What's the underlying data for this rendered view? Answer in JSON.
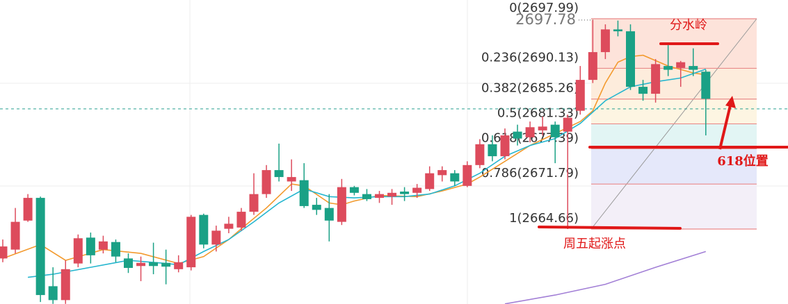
{
  "chart_data": {
    "type": "candlestick",
    "ylim": [
      2652.78,
      2700.96
    ],
    "up_color": "#dd4b5c",
    "down_color": "#1aa186",
    "open": [
      2660.0,
      2661.4,
      2666.0,
      2669.6,
      2655.6,
      2653.4,
      2659.2,
      2663.3,
      2661.4,
      2662.6,
      2660.0,
      2658.8,
      2659.4,
      2659.3,
      2658.3,
      2658.6,
      2666.9,
      2662.2,
      2664.7,
      2664.9,
      2667.4,
      2670.2,
      2674.0,
      2672.2,
      2672.4,
      2668.5,
      2668.0,
      2665.8,
      2671.3,
      2670.2,
      2669.6,
      2669.8,
      2670.6,
      2670.4,
      2671.0,
      2673.2,
      2673.5,
      2671.5,
      2674.8,
      2678.1,
      2676.2,
      2680.1,
      2679.2,
      2680.3,
      2681.2,
      2680.1,
      2683.4,
      2688.3,
      2692.7,
      2696.3,
      2696.0,
      2687.2,
      2686.1,
      2690.5,
      2690.2,
      2690.5,
      2689.6
    ],
    "high": [
      2663.0,
      2668.0,
      2670.2,
      2669.8,
      2658.6,
      2659.7,
      2663.8,
      2664.1,
      2663.6,
      2663.0,
      2660.8,
      2660.3,
      2662.5,
      2661.4,
      2660.5,
      2666.9,
      2667.1,
      2665.2,
      2666.6,
      2668.0,
      2673.5,
      2674.8,
      2678.2,
      2675.7,
      2675.1,
      2669.6,
      2670.2,
      2672.6,
      2671.5,
      2671.0,
      2670.7,
      2671.0,
      2671.3,
      2671.8,
      2674.6,
      2674.6,
      2674.0,
      2675.4,
      2678.9,
      2679.5,
      2680.6,
      2681.2,
      2681.7,
      2682.5,
      2681.7,
      2682.8,
      2690.5,
      2697.78,
      2697.1,
      2697.7,
      2697.1,
      2688.3,
      2691.6,
      2693.8,
      2691.3,
      2693.3,
      2689.9
    ],
    "low": [
      2659.4,
      2660.8,
      2665.8,
      2653.1,
      2652.8,
      2652.8,
      2658.6,
      2659.2,
      2660.8,
      2659.4,
      2657.7,
      2656.4,
      2657.5,
      2655.9,
      2657.8,
      2658.1,
      2661.6,
      2661.1,
      2664.0,
      2664.4,
      2666.9,
      2669.6,
      2672.2,
      2670.7,
      2668.0,
      2666.9,
      2662.7,
      2665.3,
      2670.0,
      2669.1,
      2668.8,
      2668.5,
      2669.1,
      2669.6,
      2670.7,
      2672.2,
      2671.5,
      2671.3,
      2674.3,
      2675.4,
      2675.7,
      2677.9,
      2678.4,
      2679.5,
      2675.1,
      2664.66,
      2682.8,
      2687.8,
      2691.6,
      2695.2,
      2686.7,
      2685.0,
      2684.7,
      2688.9,
      2687.2,
      2688.9,
      2679.5
    ],
    "close": [
      2661.9,
      2665.8,
      2669.6,
      2654.2,
      2653.4,
      2658.3,
      2663.2,
      2660.5,
      2662.7,
      2660.3,
      2658.5,
      2659.3,
      2658.8,
      2658.7,
      2659.4,
      2666.6,
      2662.2,
      2664.4,
      2665.5,
      2667.4,
      2670.2,
      2674.0,
      2672.9,
      2672.9,
      2668.3,
      2667.7,
      2666.0,
      2671.3,
      2670.4,
      2669.4,
      2670.2,
      2670.4,
      2670.2,
      2671.2,
      2673.5,
      2674.0,
      2672.2,
      2674.8,
      2678.1,
      2676.2,
      2679.5,
      2679.0,
      2680.8,
      2680.9,
      2679.2,
      2682.3,
      2688.3,
      2692.7,
      2696.3,
      2696.0,
      2687.2,
      2686.1,
      2690.8,
      2689.9,
      2691.1,
      2689.9,
      2685.3
    ],
    "lines": [
      {
        "color": "#f39a2e",
        "x": [
          0,
          3,
          5,
          8,
          11,
          14,
          16,
          18,
          19,
          21,
          23,
          24,
          26,
          27,
          28,
          30,
          33,
          35,
          37,
          38,
          40,
          42,
          44,
          46,
          47,
          48,
          49,
          50,
          51,
          53,
          55,
          56
        ],
        "values": [
          2660.0,
          2662.2,
          2659.7,
          2661.4,
          2660.8,
          2659.2,
          2660.3,
          2663.0,
          2664.7,
          2668.0,
          2671.8,
          2671.5,
          2668.8,
          2668.5,
          2669.1,
          2670.0,
          2669.8,
          2670.7,
          2671.8,
          2672.9,
          2675.4,
          2677.9,
          2679.8,
          2681.7,
          2683.4,
          2687.8,
          2691.1,
          2692.0,
          2692.2,
          2690.5,
          2689.4,
          2689.1
        ]
      },
      {
        "color": "#25b6cf",
        "x": [
          2,
          4,
          7,
          10,
          13,
          14,
          16,
          18,
          20,
          22,
          24,
          26,
          28,
          30,
          32,
          34,
          36,
          38,
          40,
          42,
          44,
          46,
          48,
          50,
          52,
          54,
          56
        ],
        "values": [
          2657.0,
          2657.5,
          2658.6,
          2659.7,
          2659.2,
          2659.0,
          2661.1,
          2663.0,
          2665.8,
          2668.8,
          2671.0,
          2669.8,
          2669.6,
          2669.8,
          2669.8,
          2670.2,
          2671.5,
          2673.5,
          2676.2,
          2677.9,
          2679.0,
          2681.4,
          2685.0,
          2687.2,
          2688.0,
          2688.6,
          2690.0
        ]
      },
      {
        "color": "#a27fd6",
        "x": [
          40,
          44,
          48,
          52,
          56
        ],
        "values": [
          2652.8,
          2654.2,
          2655.9,
          2658.6,
          2661.1
        ]
      }
    ],
    "current_price": 2683.7,
    "high_value": 2697.78,
    "fib_levels": {
      "values": [
        2697.99,
        2690.13,
        2685.26,
        2681.33,
        2677.39,
        2671.79,
        2664.66
      ],
      "value_labels": [
        "0(2697.99)",
        "0.236(2690.13)",
        "0.382(2685.26)",
        "0.5(2681.33)",
        "0.618(2677.39)",
        "0.786(2671.79)",
        "1(2664.66)"
      ],
      "line_color": "#e98a8a",
      "band_colors": [
        "#fde3da",
        "#fdecdc",
        "#fdf5e2",
        "#e2f5f4",
        "#e5e8fa",
        "#f3eff8"
      ]
    },
    "annotations": [
      "分水岭",
      "618位置",
      "周五起涨点"
    ]
  }
}
